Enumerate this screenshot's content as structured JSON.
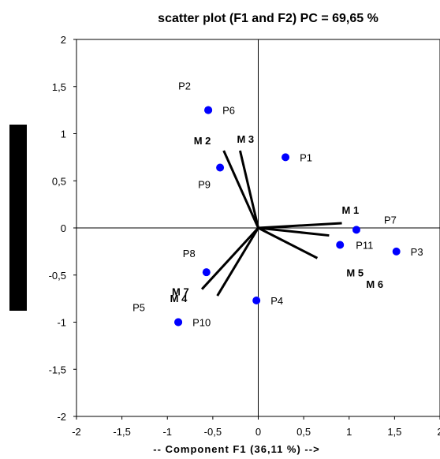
{
  "chart_data": {
    "type": "scatter",
    "title": "scatter plot  (F1 and F2) PC = 69,65 %",
    "xlabel": "-- Component F1 (36,11 %) -->",
    "ylabel": "",
    "xlim": [
      -2,
      2
    ],
    "ylim": [
      -2,
      2
    ],
    "x_ticks": [
      "-2",
      "-1,5",
      "-1",
      "-0,5",
      "0",
      "0,5",
      "1",
      "1,5",
      "2"
    ],
    "y_ticks": [
      "2",
      "1,5",
      "1",
      "0,5",
      "0",
      "-0,5",
      "-1",
      "-1,5",
      "-2"
    ],
    "grid": false,
    "point_color": "#0000ff",
    "points": [
      {
        "name": "P1",
        "x": 0.3,
        "y": 0.75
      },
      {
        "name": "P2",
        "x": -0.55,
        "y": 1.25
      },
      {
        "name": "P3",
        "x": 1.52,
        "y": -0.25
      },
      {
        "name": "P4",
        "x": -0.02,
        "y": -0.77
      },
      {
        "name": "P5",
        "x": -0.88,
        "y": -1.0
      },
      {
        "name": "P6",
        "x": -0.55,
        "y": 1.25
      },
      {
        "name": "P7",
        "x": 1.08,
        "y": -0.02
      },
      {
        "name": "P8",
        "x": -0.57,
        "y": -0.47
      },
      {
        "name": "P9",
        "x": -0.42,
        "y": 0.64
      },
      {
        "name": "P10",
        "x": -0.88,
        "y": -1.0
      },
      {
        "name": "P11",
        "x": 0.9,
        "y": -0.18
      }
    ],
    "variables": [
      {
        "name": "M 1",
        "x": 0.92,
        "y": 0.05
      },
      {
        "name": "M 2",
        "x": -0.38,
        "y": 0.82
      },
      {
        "name": "M 3",
        "x": -0.2,
        "y": 0.82
      },
      {
        "name": "M 4",
        "x": -0.45,
        "y": -0.72
      },
      {
        "name": "M 5",
        "x": 0.78,
        "y": -0.08
      },
      {
        "name": "M 6",
        "x": 0.65,
        "y": -0.32
      },
      {
        "name": "M 7",
        "x": -0.62,
        "y": -0.65
      }
    ]
  }
}
